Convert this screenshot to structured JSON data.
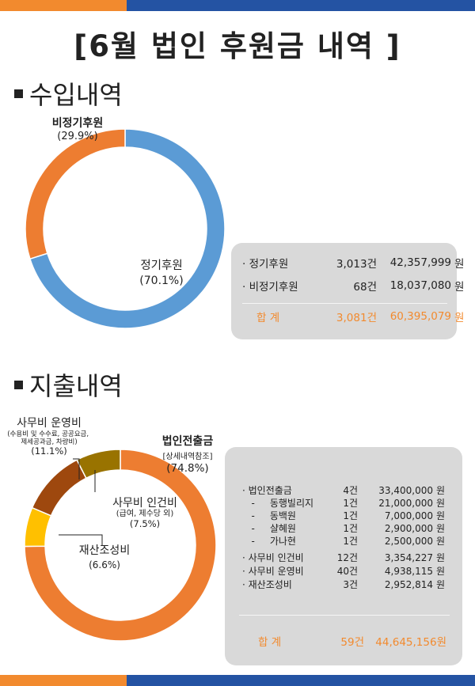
{
  "title": "[6월 법인 후원금 내역 ]",
  "colors": {
    "orange": "#f28a2e",
    "blue": "#2453a3",
    "box": "#d9d9d9",
    "income_regular": "#5b9bd5",
    "income_irregular": "#ed7d31"
  },
  "income": {
    "heading": "수입내역",
    "rows": [
      {
        "label": "· 정기후원",
        "count": "3,013건",
        "amount": "42,357,999",
        "unit": "원"
      },
      {
        "label": "· 비정기후원",
        "count": "68건",
        "amount": "18,037,080",
        "unit": "원"
      }
    ],
    "total": {
      "label": "합   계",
      "count": "3,081건",
      "amount": "60,395,079",
      "unit": "원"
    }
  },
  "expense": {
    "heading": "지출내역",
    "rows": [
      {
        "label": "· 법인전출금",
        "count": "4건",
        "amount": "33,400,000",
        "unit": "원"
      },
      {
        "label": "   -     동행빌리지",
        "count": "1건",
        "amount": "21,000,000",
        "unit": "원"
      },
      {
        "label": "   -     동백원",
        "count": "1건",
        "amount": "7,000,000",
        "unit": "원"
      },
      {
        "label": "   -     샬혜원",
        "count": "1건",
        "amount": "2,900,000",
        "unit": "원"
      },
      {
        "label": "   -     가나현",
        "count": "1건",
        "amount": "2,500,000",
        "unit": "원"
      },
      {
        "label": "· 사무비 인건비",
        "count": "12건",
        "amount": "3,354,227",
        "unit": "원"
      },
      {
        "label": "· 사무비 운영비",
        "count": "40건",
        "amount": "4,938,115",
        "unit": "원"
      },
      {
        "label": "· 재산조성비",
        "count": "3건",
        "amount": "2,952,814",
        "unit": "원"
      }
    ],
    "total": {
      "label": "합   계",
      "count": "59건",
      "amount": "44,645,156원"
    }
  },
  "chart_data": [
    {
      "type": "pie",
      "variant": "donut",
      "title": "수입내역",
      "categories": [
        "정기후원",
        "비정기후원"
      ],
      "values": [
        70.1,
        29.9
      ],
      "value_labels": [
        "(70.1%)",
        "(29.9%)"
      ],
      "colors": [
        "#5b9bd5",
        "#ed7d31"
      ]
    },
    {
      "type": "pie",
      "variant": "donut",
      "title": "지출내역",
      "categories": [
        "법인전출금",
        "재산조성비",
        "사무비 운영비",
        "사무비 인건비"
      ],
      "values": [
        74.8,
        6.6,
        11.1,
        7.5
      ],
      "value_labels": [
        "(74.8%)",
        "(6.6%)",
        "(11.1%)",
        "(7.5%)"
      ],
      "sublabels": [
        "[상세내역참조]",
        "",
        "(수용비 및 수수료, 공공요금, 제세공과금, 차량비)",
        "(급여, 제수당 외)"
      ],
      "colors": [
        "#ed7d31",
        "#ffc000",
        "#9e480e",
        "#997300"
      ]
    }
  ]
}
